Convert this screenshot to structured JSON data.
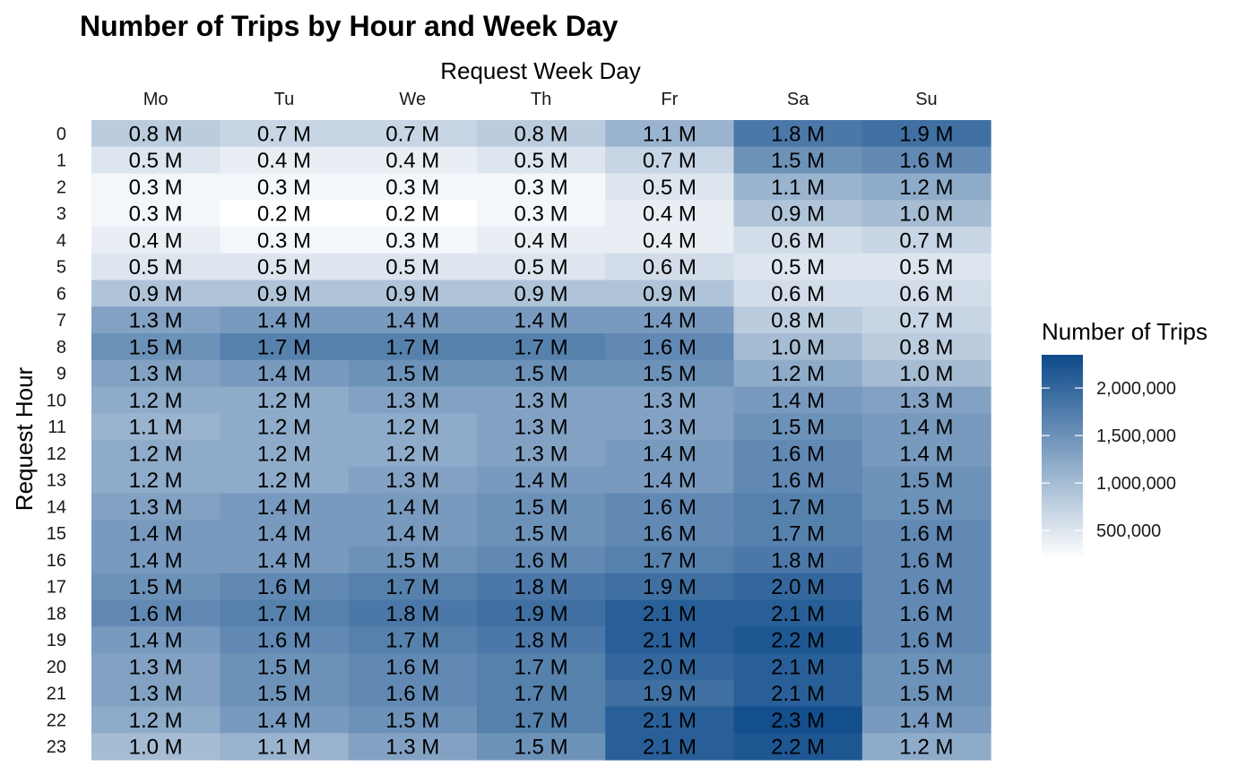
{
  "chart_data": {
    "type": "heatmap",
    "title": "Number of Trips by Hour and Week Day",
    "xlabel": "Request Week Day",
    "ylabel": "Request Hour",
    "x_axis_position": "top",
    "x": [
      "Mo",
      "Tu",
      "We",
      "Th",
      "Fr",
      "Sa",
      "Su"
    ],
    "y": [
      "0",
      "1",
      "2",
      "3",
      "4",
      "5",
      "6",
      "7",
      "8",
      "9",
      "10",
      "11",
      "12",
      "13",
      "14",
      "15",
      "16",
      "17",
      "18",
      "19",
      "20",
      "21",
      "22",
      "23"
    ],
    "values": [
      [
        0.8,
        0.7,
        0.7,
        0.8,
        1.1,
        1.8,
        1.9
      ],
      [
        0.5,
        0.4,
        0.4,
        0.5,
        0.7,
        1.5,
        1.6
      ],
      [
        0.3,
        0.3,
        0.3,
        0.3,
        0.5,
        1.1,
        1.2
      ],
      [
        0.3,
        0.2,
        0.2,
        0.3,
        0.4,
        0.9,
        1.0
      ],
      [
        0.4,
        0.3,
        0.3,
        0.4,
        0.4,
        0.6,
        0.7
      ],
      [
        0.5,
        0.5,
        0.5,
        0.5,
        0.6,
        0.5,
        0.5
      ],
      [
        0.9,
        0.9,
        0.9,
        0.9,
        0.9,
        0.6,
        0.6
      ],
      [
        1.3,
        1.4,
        1.4,
        1.4,
        1.4,
        0.8,
        0.7
      ],
      [
        1.5,
        1.7,
        1.7,
        1.7,
        1.6,
        1.0,
        0.8
      ],
      [
        1.3,
        1.4,
        1.5,
        1.5,
        1.5,
        1.2,
        1.0
      ],
      [
        1.2,
        1.2,
        1.3,
        1.3,
        1.3,
        1.4,
        1.3
      ],
      [
        1.1,
        1.2,
        1.2,
        1.3,
        1.3,
        1.5,
        1.4
      ],
      [
        1.2,
        1.2,
        1.2,
        1.3,
        1.4,
        1.6,
        1.4
      ],
      [
        1.2,
        1.2,
        1.3,
        1.4,
        1.4,
        1.6,
        1.5
      ],
      [
        1.3,
        1.4,
        1.4,
        1.5,
        1.6,
        1.7,
        1.5
      ],
      [
        1.4,
        1.4,
        1.4,
        1.5,
        1.6,
        1.7,
        1.6
      ],
      [
        1.4,
        1.4,
        1.5,
        1.6,
        1.7,
        1.8,
        1.6
      ],
      [
        1.5,
        1.6,
        1.7,
        1.8,
        1.9,
        2.0,
        1.6
      ],
      [
        1.6,
        1.7,
        1.8,
        1.9,
        2.1,
        2.1,
        1.6
      ],
      [
        1.4,
        1.6,
        1.7,
        1.8,
        2.1,
        2.2,
        1.6
      ],
      [
        1.3,
        1.5,
        1.6,
        1.7,
        2.0,
        2.1,
        1.5
      ],
      [
        1.3,
        1.5,
        1.6,
        1.7,
        1.9,
        2.1,
        1.5
      ],
      [
        1.2,
        1.4,
        1.5,
        1.7,
        2.1,
        2.3,
        1.4
      ],
      [
        1.0,
        1.1,
        1.3,
        1.5,
        2.1,
        2.2,
        1.2
      ]
    ],
    "value_unit_suffix": " M",
    "value_multiplier": 1000000,
    "legend": {
      "title": "Number of Trips",
      "position": "right",
      "ticks": [
        500000,
        1000000,
        1500000,
        2000000
      ],
      "tick_labels": [
        "500,000",
        "1,000,000",
        "1,500,000",
        "2,000,000"
      ],
      "range": [
        200000,
        2350000
      ]
    },
    "colors": {
      "low": "#ffffff",
      "high": "#0d4a8a"
    },
    "grid": false
  }
}
